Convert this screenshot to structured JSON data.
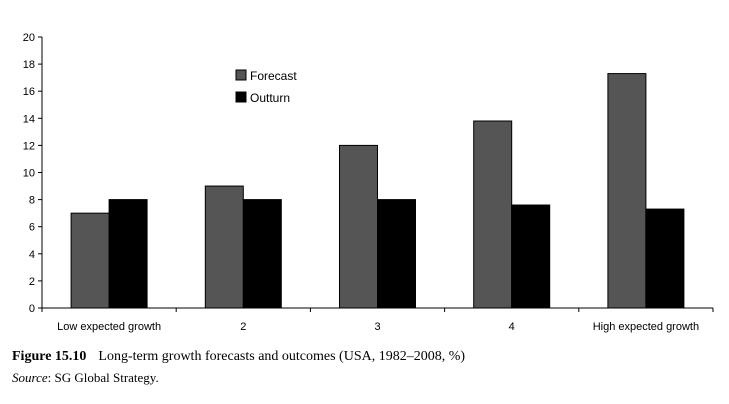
{
  "chart_data": {
    "type": "bar",
    "title": "",
    "xlabel": "",
    "ylabel": "",
    "ylim": [
      0,
      20
    ],
    "yticks": [
      0,
      2,
      4,
      6,
      8,
      10,
      12,
      14,
      16,
      18,
      20
    ],
    "categories": [
      "Low expected growth",
      "2",
      "3",
      "4",
      "High expected growth"
    ],
    "series": [
      {
        "name": "Forecast",
        "color": "#555555",
        "values": [
          7.0,
          9.0,
          12.0,
          13.8,
          17.3
        ]
      },
      {
        "name": "Outturn",
        "color": "#000000",
        "values": [
          8.0,
          8.0,
          8.0,
          7.6,
          7.3
        ]
      }
    ],
    "legend_position": "top-center",
    "grid": false
  },
  "caption": {
    "label": "Figure  15.10",
    "text": "Long-term growth forecasts and outcomes (USA, 1982–2008, %)"
  },
  "source": {
    "label": "Source",
    "text": ": SG Global Strategy."
  }
}
